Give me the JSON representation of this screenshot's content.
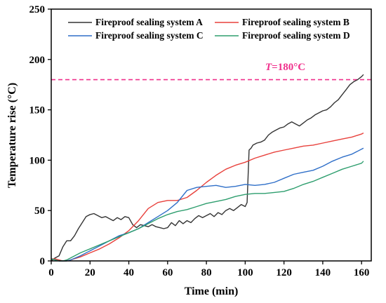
{
  "chart_data": {
    "type": "line",
    "xlabel": "Time (min)",
    "ylabel": "Temperature rise (°C)",
    "xlim": [
      0,
      165
    ],
    "ylim": [
      0,
      250
    ],
    "x_ticks": [
      0,
      20,
      40,
      60,
      80,
      100,
      120,
      140,
      160
    ],
    "y_ticks": [
      0,
      50,
      100,
      150,
      200,
      250
    ],
    "grid": false,
    "legend_position": "top-center",
    "threshold": {
      "value": 180,
      "label_var": "T",
      "label_rest": "=180°C",
      "color": "#f0308c"
    },
    "series": [
      {
        "name": "Fireproof sealing system A",
        "color": "#333333",
        "x": [
          0,
          2,
          4,
          6,
          8,
          10,
          12,
          14,
          16,
          18,
          20,
          22,
          24,
          26,
          28,
          30,
          32,
          34,
          36,
          38,
          40,
          42,
          44,
          46,
          48,
          50,
          52,
          54,
          56,
          58,
          60,
          62,
          64,
          66,
          68,
          70,
          72,
          74,
          76,
          78,
          80,
          82,
          84,
          86,
          88,
          90,
          92,
          94,
          96,
          98,
          100,
          101,
          102,
          103,
          104,
          106,
          108,
          110,
          112,
          114,
          116,
          118,
          120,
          122,
          124,
          126,
          128,
          130,
          132,
          134,
          136,
          138,
          140,
          142,
          144,
          146,
          148,
          150,
          152,
          154,
          156,
          158,
          160,
          161
        ],
        "y": [
          0,
          3,
          5,
          14,
          20,
          20,
          25,
          32,
          38,
          44,
          46,
          47,
          45,
          43,
          44,
          42,
          40,
          43,
          41,
          44,
          43,
          36,
          33,
          36,
          35,
          34,
          36,
          34,
          33,
          32,
          33,
          38,
          35,
          40,
          37,
          40,
          38,
          42,
          45,
          43,
          45,
          47,
          44,
          48,
          46,
          50,
          52,
          50,
          53,
          56,
          54,
          58,
          110,
          112,
          115,
          117,
          118,
          120,
          125,
          128,
          130,
          132,
          133,
          136,
          138,
          136,
          134,
          137,
          140,
          142,
          145,
          147,
          149,
          150,
          153,
          157,
          160,
          165,
          170,
          175,
          178,
          180,
          183,
          185
        ]
      },
      {
        "name": "Fireproof sealing system B",
        "color": "#e8413c",
        "x": [
          0,
          2,
          4,
          6,
          8,
          10,
          15,
          20,
          25,
          30,
          35,
          40,
          45,
          50,
          55,
          60,
          65,
          70,
          75,
          80,
          85,
          90,
          95,
          100,
          105,
          110,
          115,
          120,
          125,
          130,
          135,
          140,
          145,
          150,
          155,
          160,
          161
        ],
        "y": [
          2,
          2,
          1,
          0,
          0,
          1,
          4,
          8,
          12,
          17,
          23,
          30,
          40,
          52,
          58,
          60,
          60,
          63,
          70,
          78,
          85,
          91,
          95,
          98,
          102,
          105,
          108,
          110,
          112,
          114,
          115,
          117,
          119,
          121,
          123,
          126,
          127
        ]
      },
      {
        "name": "Fireproof sealing system C",
        "color": "#2f6fc8",
        "x": [
          0,
          2,
          4,
          6,
          8,
          10,
          15,
          20,
          25,
          30,
          35,
          40,
          45,
          50,
          55,
          60,
          65,
          70,
          75,
          80,
          85,
          90,
          95,
          100,
          105,
          110,
          115,
          120,
          125,
          130,
          135,
          140,
          145,
          150,
          155,
          160,
          161
        ],
        "y": [
          2,
          1,
          0,
          0,
          0,
          1,
          5,
          10,
          15,
          20,
          25,
          28,
          32,
          38,
          44,
          50,
          58,
          70,
          73,
          74,
          75,
          73,
          74,
          76,
          75,
          76,
          78,
          82,
          86,
          88,
          90,
          94,
          99,
          103,
          106,
          111,
          112
        ]
      },
      {
        "name": "Fireproof sealing system D",
        "color": "#2e9e6e",
        "x": [
          0,
          2,
          4,
          6,
          8,
          10,
          15,
          20,
          25,
          30,
          35,
          40,
          45,
          50,
          55,
          60,
          65,
          70,
          75,
          80,
          85,
          90,
          95,
          100,
          105,
          110,
          115,
          120,
          125,
          130,
          135,
          140,
          145,
          150,
          155,
          160,
          161
        ],
        "y": [
          2,
          1,
          0,
          0,
          1,
          3,
          8,
          12,
          16,
          20,
          24,
          28,
          32,
          37,
          42,
          46,
          49,
          51,
          54,
          57,
          59,
          61,
          64,
          66,
          67,
          67,
          68,
          69,
          72,
          76,
          79,
          83,
          87,
          91,
          94,
          97,
          99
        ]
      }
    ]
  }
}
